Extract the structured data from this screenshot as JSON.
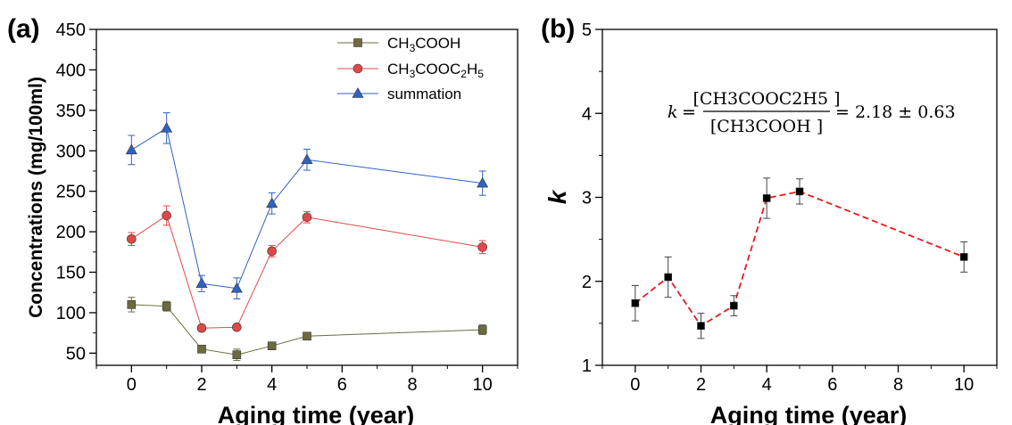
{
  "chart_data": [
    {
      "type": "line",
      "panel_label": "(a)",
      "xlabel": "Aging time (year)",
      "ylabel": "Concentrations (mg/100ml)",
      "xlim": [
        -1,
        11
      ],
      "ylim": [
        35,
        450
      ],
      "x_ticks": [
        0,
        2,
        4,
        6,
        8,
        10
      ],
      "y_ticks": [
        50,
        100,
        150,
        200,
        250,
        300,
        350,
        400,
        450
      ],
      "legend_position": "top-right",
      "x": [
        0,
        1,
        2,
        3,
        4,
        5,
        10
      ],
      "series": [
        {
          "name": "CH3COOH",
          "name_parts": [
            [
              "CH",
              ""
            ],
            [
              "3",
              "sub"
            ],
            [
              "COOH",
              ""
            ]
          ],
          "color": "#6b6b3f",
          "marker": "square",
          "values": [
            110,
            108,
            55,
            48,
            59,
            71,
            79
          ],
          "errors": [
            9,
            6,
            4,
            7,
            4,
            3,
            6
          ]
        },
        {
          "name": "CH3COOC2H5",
          "name_parts": [
            [
              "CH",
              ""
            ],
            [
              "3",
              "sub"
            ],
            [
              "COOC",
              ""
            ],
            [
              "2",
              "sub"
            ],
            [
              "H",
              ""
            ],
            [
              "5",
              "sub"
            ]
          ],
          "color": "#e04848",
          "marker": "circle",
          "values": [
            191,
            220,
            81,
            82,
            176,
            218,
            181
          ],
          "errors": [
            8,
            12,
            3,
            3,
            7,
            7,
            8
          ]
        },
        {
          "name": "summation",
          "name_parts": [
            [
              "summation",
              ""
            ]
          ],
          "color": "#2f63c2",
          "marker": "triangle",
          "values": [
            301,
            328,
            136,
            130,
            235,
            289,
            260
          ],
          "errors": [
            18,
            19,
            10,
            13,
            13,
            13,
            15
          ]
        }
      ]
    },
    {
      "type": "line",
      "panel_label": "(b)",
      "xlabel": "Aging time (year)",
      "ylabel": "k",
      "xlim": [
        -1,
        11
      ],
      "ylim": [
        1,
        5
      ],
      "x_ticks": [
        0,
        2,
        4,
        6,
        8,
        10
      ],
      "y_ticks": [
        1,
        2,
        3,
        4,
        5
      ],
      "annotation": {
        "k": "k",
        "eq1": "=",
        "numerator": "[CH3COOC2H5 ]",
        "denominator": "[CH3COOH ]",
        "eq2": "= 2.18 ± 0.63"
      },
      "x": [
        0,
        1,
        2,
        3,
        4,
        5,
        10
      ],
      "series": [
        {
          "color": "#e41a1c",
          "marker_color": "#000000",
          "marker": "square",
          "line_style": "dashed",
          "values": [
            1.74,
            2.05,
            1.47,
            1.71,
            2.99,
            3.07,
            2.29
          ],
          "errors": [
            0.21,
            0.24,
            0.15,
            0.12,
            0.24,
            0.15,
            0.18
          ]
        }
      ]
    }
  ]
}
